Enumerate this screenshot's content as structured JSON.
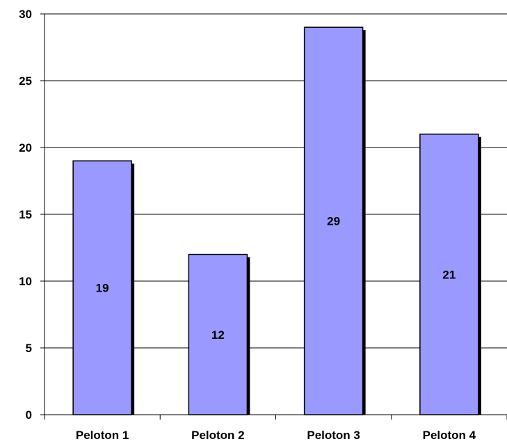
{
  "chart_data": {
    "type": "bar",
    "title": "",
    "xlabel": "",
    "ylabel": "",
    "categories": [
      "Peloton 1",
      "Peloton 2",
      "Peloton 3",
      "Peloton 4"
    ],
    "values": [
      19,
      12,
      29,
      21
    ],
    "data_labels": [
      "19",
      "12",
      "29",
      "21"
    ],
    "ylim": [
      0,
      30
    ],
    "yticks": [
      0,
      5,
      10,
      15,
      20,
      25,
      30
    ],
    "ytick_labels": [
      "0",
      "5",
      "10",
      "15",
      "20",
      "25",
      "30"
    ],
    "grid": true,
    "legend": "none",
    "colors": {
      "bar_fill": "#9999ff",
      "bar_stroke": "#000000",
      "bar_shadow": "#000000",
      "grid": "#000000",
      "axis": "#000000"
    }
  }
}
